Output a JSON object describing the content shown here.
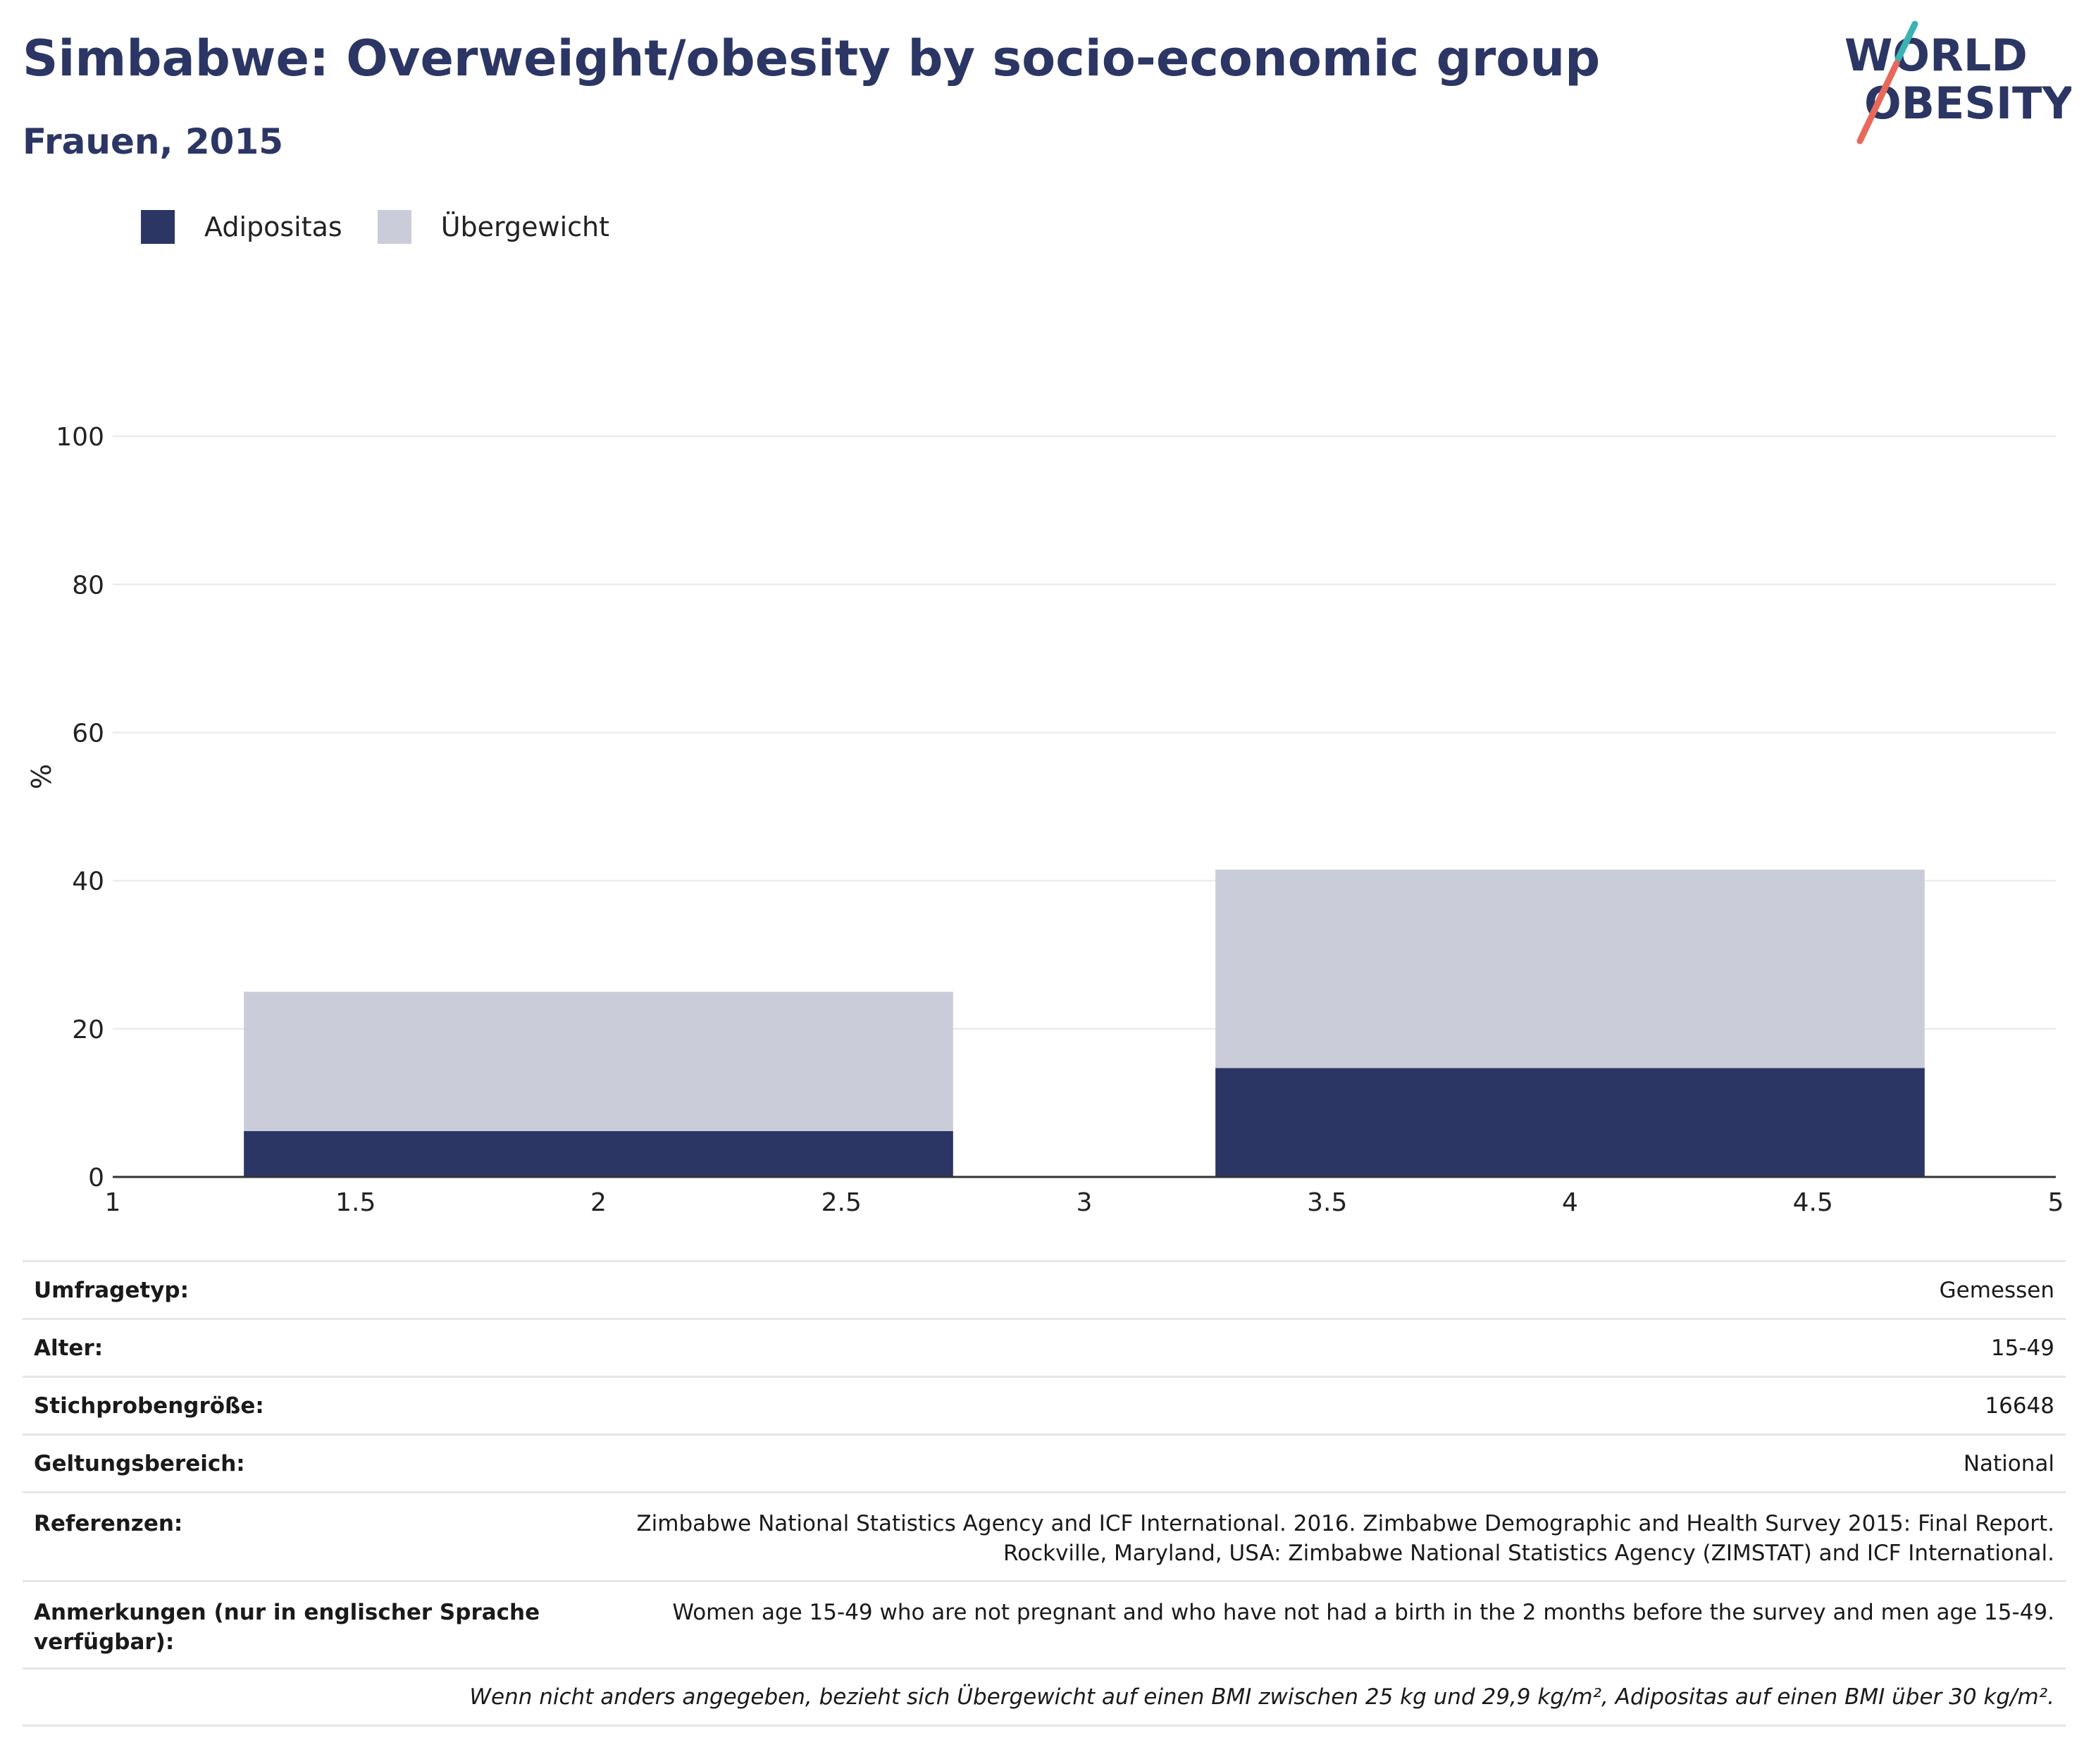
{
  "header": {
    "title": "Simbabwe: Overweight/obesity by socio-economic group",
    "subtitle": "Frauen, 2015"
  },
  "logo": {
    "line1": "WORLD",
    "line2": "OBESITY"
  },
  "chart_data": {
    "type": "bar",
    "stacked": true,
    "ylabel": "%",
    "xlim": [
      1,
      5
    ],
    "ylim": [
      0,
      110
    ],
    "x_ticks": [
      "1",
      "1.5",
      "2",
      "2.5",
      "3",
      "3.5",
      "4",
      "4.5",
      "5"
    ],
    "y_ticks": [
      "0",
      "20",
      "40",
      "60",
      "80",
      "100"
    ],
    "grid": true,
    "legend_position": "top-left",
    "bars": [
      {
        "x_start": 1.27,
        "x_end": 2.73
      },
      {
        "x_start": 3.27,
        "x_end": 4.73
      }
    ],
    "series": [
      {
        "name": "Adipositas",
        "color": "#2b3664",
        "values": [
          6.2,
          14.7
        ]
      },
      {
        "name": "Übergewicht",
        "color": "#cacdd9",
        "values": [
          18.8,
          26.8
        ]
      }
    ]
  },
  "info": {
    "rows": [
      {
        "label": "Umfragetyp:",
        "value": "Gemessen"
      },
      {
        "label": "Alter:",
        "value": "15-49"
      },
      {
        "label": "Stichprobengröße:",
        "value": "16648"
      },
      {
        "label": "Geltungsbereich:",
        "value": "National"
      },
      {
        "label": "Referenzen:",
        "value_line1": "Zimbabwe National Statistics Agency and ICF International. 2016. Zimbabwe Demographic and Health Survey 2015: Final Report.",
        "value_line2": "Rockville, Maryland, USA: Zimbabwe National Statistics Agency (ZIMSTAT) and ICF International."
      },
      {
        "label": "Anmerkungen (nur in englischer Sprache verfügbar):",
        "value": "Women age 15-49 who are not pregnant and who have not had a birth in the 2 months before the survey and men age 15-49."
      }
    ],
    "footnote": "Wenn nicht anders angegeben, bezieht sich Übergewicht auf einen BMI zwischen 25 kg und 29,9 kg/m², Adipositas auf einen BMI über 30 kg/m²."
  }
}
